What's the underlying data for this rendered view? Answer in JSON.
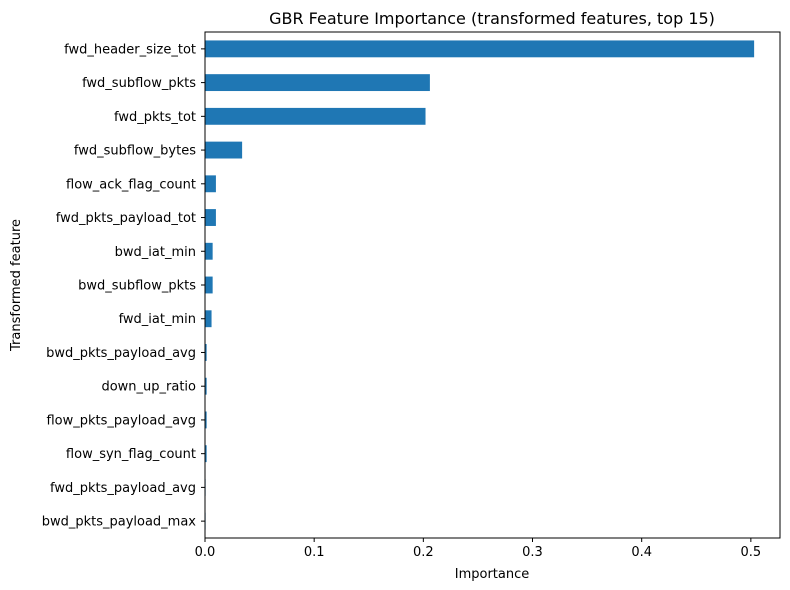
{
  "chart_data": {
    "type": "bar",
    "orientation": "horizontal",
    "title": "GBR Feature Importance (transformed features, top 15)",
    "xlabel": "Importance",
    "ylabel": "Transformed feature",
    "xlim": [
      0,
      0.5267
    ],
    "xticks": [
      0.0,
      0.1,
      0.2,
      0.3,
      0.4,
      0.5
    ],
    "xtick_labels": [
      "0.0",
      "0.1",
      "0.2",
      "0.3",
      "0.4",
      "0.5"
    ],
    "grid": false,
    "legend": "none",
    "categories": [
      "fwd_header_size_tot",
      "fwd_subflow_pkts",
      "fwd_pkts_tot",
      "fwd_subflow_bytes",
      "flow_ack_flag_count",
      "fwd_pkts_payload_tot",
      "bwd_iat_min",
      "bwd_subflow_pkts",
      "fwd_iat_min",
      "bwd_pkts_payload_avg",
      "down_up_ratio",
      "flow_pkts_payload_avg",
      "flow_syn_flag_count",
      "fwd_pkts_payload_avg",
      "bwd_pkts_payload_max"
    ],
    "values": [
      0.503,
      0.206,
      0.202,
      0.034,
      0.01,
      0.01,
      0.007,
      0.007,
      0.006,
      0.0015,
      0.0015,
      0.0015,
      0.0015,
      0.0005,
      0.0003
    ],
    "bar_color": "#1f77b4"
  }
}
